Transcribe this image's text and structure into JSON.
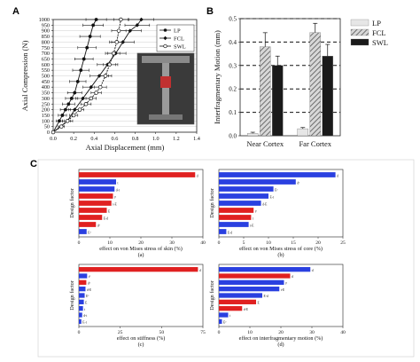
{
  "panels": {
    "a": "A",
    "b": "B",
    "c": "C"
  },
  "chart_data": [
    {
      "id": "A",
      "type": "line",
      "xlabel": "Axial Displacement (mm)",
      "ylabel": "Axial Compression (N)",
      "xlim": [
        0,
        1.4
      ],
      "ylim": [
        0,
        1000
      ],
      "xticks": [
        "0.0",
        "0.2",
        "0.4",
        "0.6",
        "0.8",
        "1.0",
        "1.2",
        "1.4"
      ],
      "xtick_values": [
        0,
        0.2,
        0.4,
        0.6,
        0.8,
        1.0,
        1.2,
        1.4
      ],
      "yticks": [
        "0",
        "50",
        "100",
        "150",
        "200",
        "250",
        "300",
        "350",
        "400",
        "450",
        "500",
        "550",
        "600",
        "650",
        "700",
        "750",
        "800",
        "850",
        "900",
        "950",
        "1000"
      ],
      "ytick_values": [
        0,
        50,
        100,
        150,
        200,
        250,
        300,
        350,
        400,
        450,
        500,
        550,
        600,
        650,
        700,
        750,
        800,
        850,
        900,
        950,
        1000
      ],
      "legend_position": "top-right",
      "inset_photo": true,
      "series": [
        {
          "name": "LP",
          "marker": "filled-circle",
          "color": "#111111",
          "x": [
            0,
            0.06,
            0.09,
            0.12,
            0.15,
            0.18,
            0.21,
            0.24,
            0.27,
            0.3,
            0.33,
            0.36,
            0.39,
            0.42
          ],
          "y": [
            0,
            100,
            150,
            200,
            250,
            300,
            350,
            450,
            550,
            650,
            750,
            850,
            950,
            1000
          ],
          "err": [
            0,
            0.03,
            0.04,
            0.05,
            0.06,
            0.06,
            0.07,
            0.08,
            0.08,
            0.09,
            0.09,
            0.1,
            0.1,
            0.1
          ]
        },
        {
          "name": "FCL",
          "marker": "filled-diamond",
          "color": "#111111",
          "x": [
            0,
            0.14,
            0.21,
            0.29,
            0.37,
            0.45,
            0.53,
            0.61,
            0.68,
            0.75,
            0.82,
            0.86
          ],
          "y": [
            0,
            100,
            200,
            300,
            400,
            500,
            600,
            700,
            800,
            900,
            950,
            1000
          ],
          "err": [
            0,
            0.05,
            0.06,
            0.07,
            0.08,
            0.09,
            0.1,
            0.1,
            0.11,
            0.11,
            0.12,
            0.12
          ]
        },
        {
          "name": "SWL",
          "marker": "open-circle",
          "color": "#111111",
          "x": [
            0,
            0.08,
            0.14,
            0.2,
            0.26,
            0.32,
            0.37,
            0.42,
            0.46,
            0.51,
            0.55,
            0.59,
            0.62,
            0.64,
            0.66
          ],
          "y": [
            0,
            50,
            100,
            150,
            200,
            250,
            300,
            350,
            400,
            500,
            600,
            700,
            800,
            900,
            1000
          ],
          "err": [
            0,
            0.03,
            0.03,
            0.04,
            0.04,
            0.05,
            0.05,
            0.05,
            0.06,
            0.06,
            0.06,
            0.06,
            0.07,
            0.07,
            0.07
          ]
        }
      ]
    },
    {
      "id": "B",
      "type": "bar",
      "ylabel": "Interfragmentary Motion (mm)",
      "categories": [
        "Near Cortex",
        "Far Cortex"
      ],
      "ylim": [
        0,
        0.5
      ],
      "yticks": [
        "0.0",
        "0.1",
        "0.2",
        "0.3",
        "0.4",
        "0.5"
      ],
      "ytick_values": [
        0,
        0.1,
        0.2,
        0.3,
        0.4,
        0.5
      ],
      "grid": "dashed-horizontal",
      "legend_position": "right",
      "series": [
        {
          "name": "LP",
          "fill": "light-gray",
          "values": [
            0.01,
            0.03
          ],
          "err": [
            0.005,
            0.005
          ]
        },
        {
          "name": "FCL",
          "fill": "hatched",
          "values": [
            0.38,
            0.44
          ],
          "err": [
            0.06,
            0.04
          ]
        },
        {
          "name": "SWL",
          "fill": "black",
          "values": [
            0.3,
            0.34
          ],
          "err": [
            0.04,
            0.05
          ]
        }
      ]
    },
    {
      "id": "C-a",
      "type": "bar",
      "orientation": "horizontal",
      "ylabel": "Design factor",
      "xlabel": "effect on von Mises stress of skin (%)",
      "caption": "(a)",
      "xlim": [
        0,
        40
      ],
      "xticks": [
        "0",
        "10",
        "20",
        "30",
        "40"
      ],
      "xtick_values": [
        0,
        10,
        20,
        30,
        40
      ],
      "categories": [
        "d",
        "t",
        "d-t",
        "t²",
        "t-E",
        "E",
        "E-d",
        "d²",
        "E²"
      ],
      "values": [
        37.5,
        12.0,
        11.5,
        11.0,
        10.5,
        9.0,
        7.5,
        5.5,
        2.5
      ],
      "colors": [
        "#e02020",
        "#2a40e0",
        "#2a40e0",
        "#e02020",
        "#e02020",
        "#e02020",
        "#e02020",
        "#e02020",
        "#2a40e0"
      ]
    },
    {
      "id": "C-b",
      "type": "bar",
      "orientation": "horizontal",
      "xlabel": "effect on von Mises stress of core (%)",
      "caption": "(b)",
      "xlim": [
        0,
        25
      ],
      "xticks": [
        "0",
        "5",
        "10",
        "15",
        "20",
        "25"
      ],
      "xtick_values": [
        0,
        5,
        10,
        15,
        20,
        25
      ],
      "categories": [
        "d",
        "d²",
        "E²",
        "E-t",
        "d-E",
        "t²",
        "t",
        "t-E",
        "E-d"
      ],
      "values": [
        23.5,
        15.5,
        11.0,
        10.0,
        8.5,
        7.0,
        6.5,
        6.0,
        1.5
      ],
      "colors": [
        "#2a40e0",
        "#2a40e0",
        "#2a40e0",
        "#2a40e0",
        "#2a40e0",
        "#e02020",
        "#e02020",
        "#2a40e0",
        "#2a40e0"
      ]
    },
    {
      "id": "C-c",
      "type": "bar",
      "orientation": "horizontal",
      "xlabel": "effect on stiffness (%)",
      "caption": "(c)",
      "xlim": [
        0,
        75
      ],
      "xticks": [
        "0",
        "25",
        "50",
        "75"
      ],
      "xtick_values": [
        0,
        25,
        50,
        75
      ],
      "categories": [
        "d",
        "t²",
        "d²",
        "d-E",
        "E²",
        "E",
        "t",
        "d-t",
        "E-t"
      ],
      "values": [
        72.0,
        5.0,
        4.5,
        4.0,
        3.5,
        3.0,
        2.5,
        2.0,
        1.5
      ],
      "colors": [
        "#e02020",
        "#2a40e0",
        "#e02020",
        "#2a40e0",
        "#2a40e0",
        "#2a40e0",
        "#2a40e0",
        "#2a40e0",
        "#2a40e0"
      ]
    },
    {
      "id": "C-d",
      "type": "bar",
      "orientation": "horizontal",
      "xlabel": "effect on interfragmentary motion (%)",
      "caption": "(d)",
      "xlim": [
        0,
        40
      ],
      "xticks": [
        "0",
        "10",
        "20",
        "30",
        "40"
      ],
      "xtick_values": [
        0,
        10,
        20,
        30,
        40
      ],
      "categories": [
        "d",
        "d",
        "t²",
        "t-E",
        "E-d",
        "E",
        "d-E",
        "t",
        "E²"
      ],
      "values": [
        29.5,
        23.0,
        21.0,
        19.5,
        14.0,
        12.0,
        7.5,
        3.0,
        1.0
      ],
      "colors": [
        "#2a40e0",
        "#e02020",
        "#2a40e0",
        "#2a40e0",
        "#2a40e0",
        "#e02020",
        "#e02020",
        "#2a40e0",
        "#2a40e0"
      ]
    }
  ]
}
